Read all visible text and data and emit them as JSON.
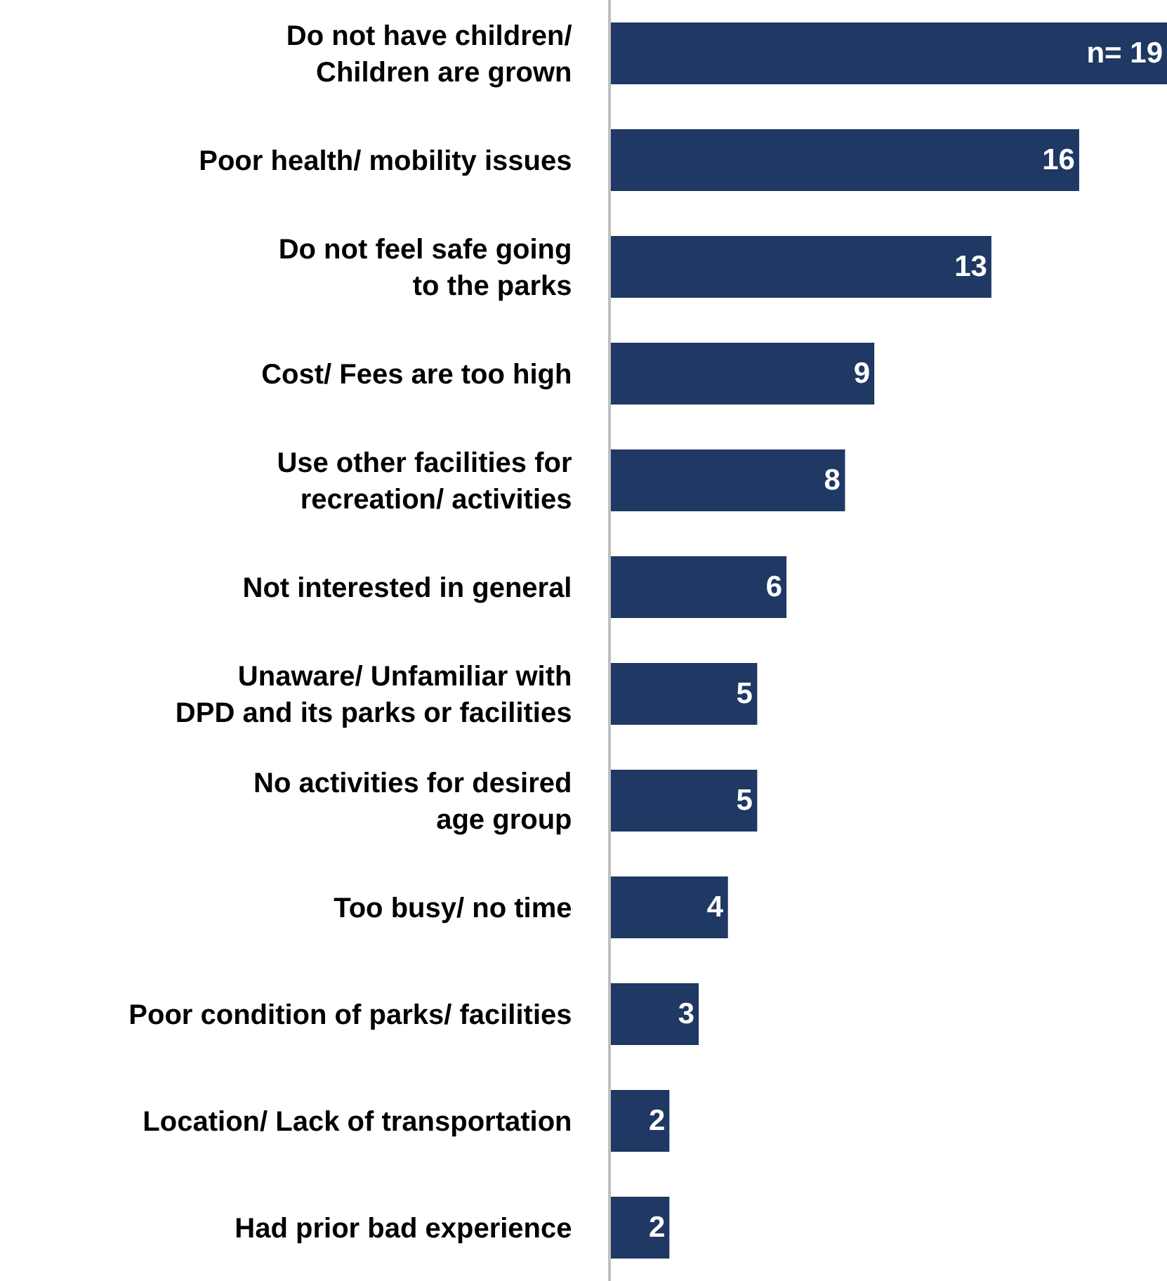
{
  "chart_data": {
    "type": "bar",
    "orientation": "horizontal",
    "categories": [
      "Do not have children/\nChildren are grown",
      "Poor health/ mobility issues",
      "Do not feel safe going\nto the parks",
      "Cost/ Fees are too high",
      "Use other facilities for\nrecreation/ activities",
      "Not interested in general",
      "Unaware/ Unfamiliar with\nDPD and its parks or facilities",
      "No activities for desired\nage group",
      "Too busy/ no time",
      "Poor condition of parks/ facilities",
      "Location/ Lack of transportation",
      "Had prior bad experience"
    ],
    "values": [
      19,
      16,
      13,
      9,
      8,
      6,
      5,
      5,
      4,
      3,
      2,
      2
    ],
    "value_labels": [
      "n= 19",
      "16",
      "13",
      "9",
      "8",
      "6",
      "5",
      "5",
      "4",
      "3",
      "2",
      "2"
    ],
    "color": "#1f3864"
  }
}
